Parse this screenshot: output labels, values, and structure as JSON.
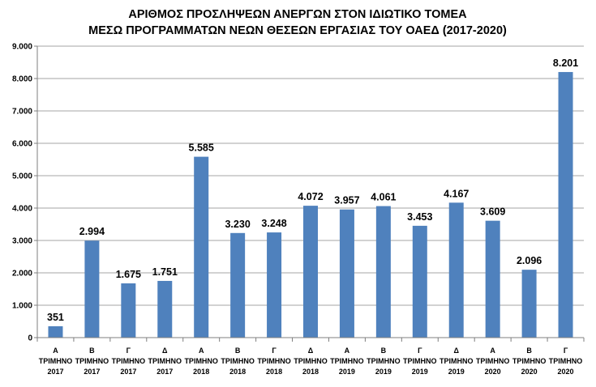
{
  "chart_data": {
    "type": "bar",
    "title": [
      "ΑΡΙΘΜΟΣ ΠΡΟΣΛΗΨΕΩΝ ΑΝΕΡΓΩΝ ΣΤΟΝ ΙΔΙΩΤΙΚΟ ΤΟΜΕΑ",
      "ΜΕΣΩ ΠΡΟΓΡΑΜΜΑΤΩΝ ΝΕΩΝ ΘΕΣΕΩΝ ΕΡΓΑΣΙΑΣ ΤΟΥ ΟΑΕΔ (2017-2020)"
    ],
    "categories": [
      [
        "Α",
        "ΤΡΙΜΗΝΟ",
        "2017"
      ],
      [
        "Β",
        "ΤΡΙΜΗΝΟ",
        "2017"
      ],
      [
        "Γ",
        "ΤΡΙΜΗΝΟ",
        "2017"
      ],
      [
        "Δ",
        "ΤΡΙΜΗΝΟ",
        "2017"
      ],
      [
        "Α",
        "ΤΡΙΜΗΝΟ",
        "2018"
      ],
      [
        "Β",
        "ΤΡΙΜΗΝΟ",
        "2018"
      ],
      [
        "Γ",
        "ΤΡΙΜΗΝΟ",
        "2018"
      ],
      [
        "Δ",
        "ΤΡΙΜΗΝΟ",
        "2018"
      ],
      [
        "Α",
        "ΤΡΙΜΗΝΟ",
        "2019"
      ],
      [
        "Β",
        "ΤΡΙΜΗΝΟ",
        "2019"
      ],
      [
        "Γ",
        "ΤΡΙΜΗΝΟ",
        "2019"
      ],
      [
        "Δ",
        "ΤΡΙΜΗΝΟ",
        "2019"
      ],
      [
        "Α",
        "ΤΡΙΜΗΝΟ",
        "2020"
      ],
      [
        "Β",
        "ΤΡΙΜΗΝΟ",
        "2020"
      ],
      [
        "Γ",
        "ΤΡΙΜΗΝΟ",
        "2020"
      ]
    ],
    "values": [
      351,
      2994,
      1675,
      1751,
      5585,
      3230,
      3248,
      4072,
      3957,
      4061,
      3453,
      4167,
      3609,
      2096,
      8201
    ],
    "data_labels": [
      "351",
      "2.994",
      "1.675",
      "1.751",
      "5.585",
      "3.230",
      "3.248",
      "4.072",
      "3.957",
      "4.061",
      "3.453",
      "4.167",
      "3.609",
      "2.096",
      "8.201"
    ],
    "yticks": [
      0,
      1000,
      2000,
      3000,
      4000,
      5000,
      6000,
      7000,
      8000,
      9000
    ],
    "ytick_labels": [
      "0",
      "1.000",
      "2.000",
      "3.000",
      "4.000",
      "5.000",
      "6.000",
      "7.000",
      "8.000",
      "9.000"
    ],
    "ylim": [
      0,
      9000
    ],
    "grid": true,
    "bar_color": "#4F81BD",
    "grid_color": "#A6A6A6"
  }
}
